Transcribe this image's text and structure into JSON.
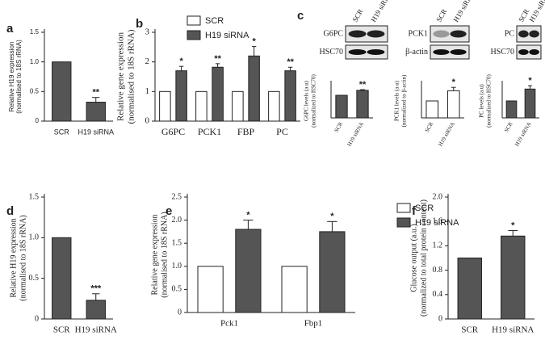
{
  "chart_data": [
    {
      "type": "bar",
      "panel": "a",
      "ylabel": [
        "Relative H19 expression",
        "(normalised to 18S rRNA)"
      ],
      "categories": [
        "SCR",
        "H19 siRNA"
      ],
      "ylim": [
        0,
        1.5
      ],
      "yticks": [
        0,
        0.5,
        {
          "value": 1,
          "label": "1.0"
        },
        1.5
      ],
      "series": [
        {
          "color": "#555555",
          "values": [
            1,
            0.32
          ],
          "errors": [
            null,
            0.08
          ],
          "significance": [
            null,
            "**"
          ]
        }
      ]
    },
    {
      "type": "bar",
      "panel": "b",
      "ylabel": [
        "Relative gene expression",
        "(normalised to 18S rRNA)"
      ],
      "categories": [
        "G6PC",
        "PCK1",
        "FBP",
        "PC"
      ],
      "ylim": [
        0,
        3
      ],
      "yticks": [
        0,
        1,
        2,
        3
      ],
      "series": [
        {
          "name": "SCR",
          "color": "#ffffff",
          "values": [
            1,
            1,
            1,
            1
          ],
          "errors": [
            null,
            null,
            null,
            null
          ],
          "significance": [
            null,
            null,
            null,
            null
          ]
        },
        {
          "name": "H19 siRNA",
          "color": "#555555",
          "values": [
            1.7,
            1.82,
            2.2,
            1.7
          ],
          "errors": [
            0.15,
            0.12,
            0.32,
            0.12
          ],
          "significance": [
            "*",
            "**",
            "*",
            "**"
          ]
        }
      ]
    },
    {
      "type": "bar",
      "panel": "c",
      "ylabel": [
        "G6PC levels (a.u)",
        "(normalized to HSC70)"
      ],
      "categories": [
        "SCR",
        "H19 siRNA"
      ],
      "ylim": [
        0,
        1.5
      ],
      "yticks": [],
      "series": [
        {
          "color": "#555555",
          "values": [
            1,
            1.22
          ],
          "errors": [
            null,
            0.03
          ],
          "significance": [
            null,
            "**"
          ]
        }
      ]
    },
    {
      "type": "bar",
      "ylabel": [
        "PCK1 levels (a.u)",
        "(normalized to β-actin)"
      ],
      "categories": [
        "SCR",
        "H19 siRNA"
      ],
      "ylim": [
        0,
        2
      ],
      "yticks": [],
      "series": [
        {
          "color": "#ffffff",
          "values": [
            1,
            1.6
          ],
          "errors": [
            null,
            0.2
          ],
          "significance": [
            null,
            "*"
          ]
        }
      ]
    },
    {
      "type": "bar",
      "ylabel": [
        "PC levels (a.u)",
        "(normalized to HSC70)"
      ],
      "categories": [
        "SCR",
        "H19 siRNA"
      ],
      "ylim": [
        0,
        2
      ],
      "yticks": [],
      "series": [
        {
          "color": "#555555",
          "values": [
            1,
            1.7
          ],
          "errors": [
            null,
            0.2
          ],
          "significance": [
            null,
            "*"
          ]
        }
      ]
    },
    {
      "type": "bar",
      "panel": "d",
      "ylabel": [
        "Relative H19 expression",
        "(normalised to 18S rRNA)"
      ],
      "categories": [
        "SCR",
        "H19 siRNA"
      ],
      "ylim": [
        0,
        1.5
      ],
      "yticks": [
        0,
        0.5,
        {
          "value": 1,
          "label": "1.0"
        },
        1.5
      ],
      "series": [
        {
          "color": "#555555",
          "values": [
            1,
            0.23
          ],
          "errors": [
            null,
            0.08
          ],
          "significance": [
            null,
            "***"
          ]
        }
      ]
    },
    {
      "type": "bar",
      "panel": "e",
      "ylabel": [
        "Relative gene expression",
        "(normalised to 18S rRNA)"
      ],
      "categories": [
        "Pck1",
        "Fbp1"
      ],
      "ylim": [
        0,
        2.5
      ],
      "yticks": [
        0,
        0.5,
        {
          "value": 1,
          "label": "1.0"
        },
        1.5,
        {
          "value": 2,
          "label": "2.0"
        },
        2.5
      ],
      "series": [
        {
          "name": "SCR",
          "color": "#ffffff",
          "values": [
            1,
            1
          ],
          "errors": [
            null,
            null
          ],
          "significance": [
            null,
            null
          ]
        },
        {
          "name": "H19 siRNA",
          "color": "#555555",
          "values": [
            1.8,
            1.75
          ],
          "errors": [
            0.2,
            0.22
          ],
          "significance": [
            "*",
            "*"
          ]
        }
      ]
    },
    {
      "type": "bar",
      "panel": "f",
      "ylabel": [
        "Glucose output (a.u.)",
        "(normalized to total protein content)"
      ],
      "categories": [
        "SCR",
        "H19 siRNA"
      ],
      "ylim": [
        0,
        2
      ],
      "yticks": [
        0,
        0.4,
        0.8,
        1.2,
        1.6,
        {
          "value": 2,
          "label": "2.0"
        }
      ],
      "series": [
        {
          "color": "#555555",
          "values": [
            1,
            1.36
          ],
          "errors": [
            null,
            0.09
          ],
          "significance": [
            null,
            "*"
          ]
        }
      ]
    }
  ],
  "blots": [
    {
      "columns": [
        "SCR",
        "H19 siRNA"
      ],
      "bands": [
        "G6PC",
        "HSC70"
      ]
    },
    {
      "columns": [
        "SCR",
        "H19 siRNA"
      ],
      "bands": [
        "PCK1",
        "β-actin"
      ]
    },
    {
      "columns": [
        "SCR",
        "H19 siRNA"
      ],
      "bands": [
        "PC",
        "HSC70"
      ]
    }
  ]
}
